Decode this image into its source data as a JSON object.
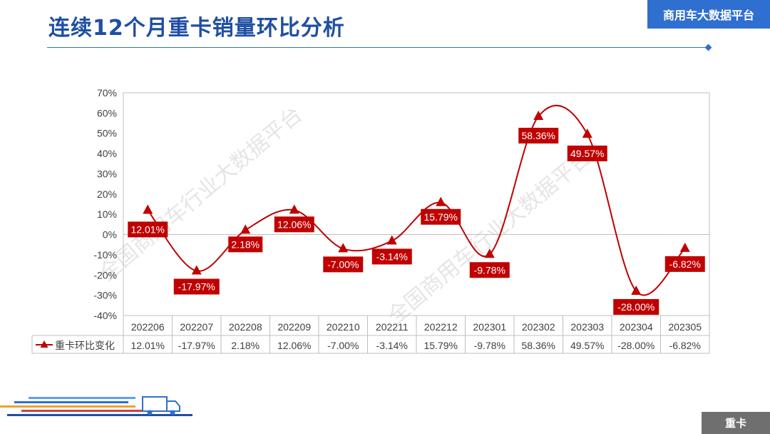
{
  "header": {
    "title": "连续12个月重卡销量环比分析",
    "brand": "商用车大数据平台"
  },
  "footer": {
    "tag": "重卡"
  },
  "watermark": "全国商用车行业大数据平台",
  "colors": {
    "accent": "#2f6fd0",
    "series": "#c00000",
    "title": "#1f4fa3"
  },
  "chart_data": {
    "type": "line",
    "title": "",
    "xlabel": "",
    "ylabel": "",
    "categories": [
      "202206",
      "202207",
      "202208",
      "202209",
      "202210",
      "202211",
      "202212",
      "202301",
      "202302",
      "202303",
      "202304",
      "202305"
    ],
    "series": [
      {
        "name": "重卡环比变化",
        "values": [
          12.01,
          -17.97,
          2.18,
          12.06,
          -7.0,
          -3.14,
          15.79,
          -9.78,
          58.36,
          49.57,
          -28.0,
          -6.82
        ],
        "labels": [
          "12.01%",
          "-17.97%",
          "2.18%",
          "12.06%",
          "-7.00%",
          "-3.14%",
          "15.79%",
          "-9.78%",
          "58.36%",
          "49.57%",
          "-28.00%",
          "-6.82%"
        ],
        "marker": "triangle",
        "smooth": true
      }
    ],
    "ylim": [
      -40,
      70
    ],
    "yticks": [
      "70%",
      "60%",
      "50%",
      "40%",
      "30%",
      "20%",
      "10%",
      "0%",
      "-10%",
      "-20%",
      "-30%",
      "-40%"
    ],
    "ytick_values": [
      70,
      60,
      50,
      40,
      30,
      20,
      10,
      0,
      -10,
      -20,
      -30,
      -40
    ],
    "grid": false,
    "legend": "data-table-left",
    "data_table": true
  }
}
